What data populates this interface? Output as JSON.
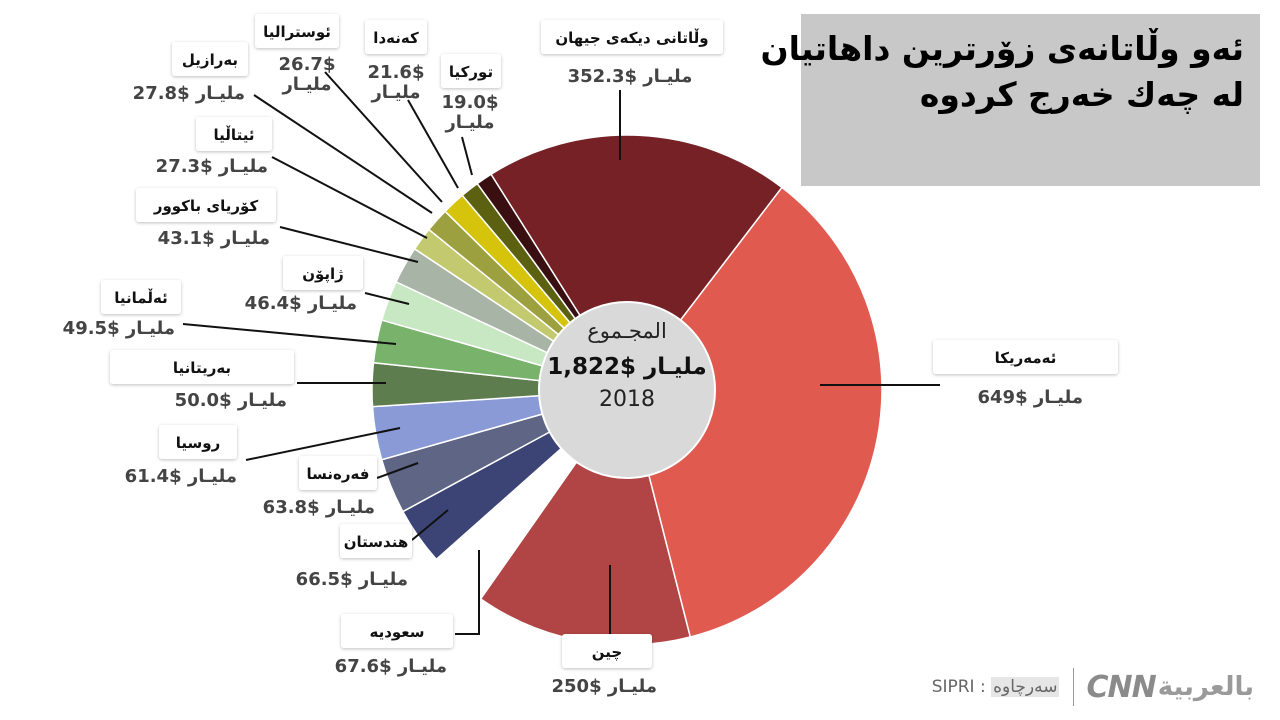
{
  "title_lines": [
    "ئەو وڵاتانەی زۆرترین داهاتیان",
    "لە چەك خەرج كردوە"
  ],
  "center": {
    "label": "المجـموع",
    "total": "1,822$ مليـار",
    "year": "2018"
  },
  "footer": {
    "source_label": "سەرچاوە",
    "source_value": "SIPRI :",
    "logo_cnn": "CNN",
    "logo_ar": "بالعربية"
  },
  "chart_data": {
    "type": "pie",
    "total": 1822,
    "year": 2018,
    "slices": [
      {
        "name": "ئەمەريكا",
        "value": 649,
        "label": "649$ مليـار",
        "color": "#e05a4f"
      },
      {
        "name": "چين",
        "value": 250,
        "label": "250$ مليـار",
        "color": "#b14545"
      },
      {
        "name": "سعوديه",
        "value": 67.6,
        "label": "67.6$ مليـار",
        "color": "#ffffff"
      },
      {
        "name": "هندستان",
        "value": 66.5,
        "label": "66.5$ مليـار",
        "color": "#3b4475"
      },
      {
        "name": "فەرەنسا",
        "value": 63.8,
        "label": "63.8$ مليـار",
        "color": "#5e6585"
      },
      {
        "name": "روسيا",
        "value": 61.4,
        "label": "61.4$ مليـار",
        "color": "#8a9ad6"
      },
      {
        "name": "بەريتانيا",
        "value": 50.0,
        "label": "50.0$ مليـار",
        "color": "#5e7d4f"
      },
      {
        "name": "ئەڵمانيا",
        "value": 49.5,
        "label": "49.5$ مليـار",
        "color": "#79b36b"
      },
      {
        "name": "ژاپۆن",
        "value": 46.4,
        "label": "46.4$ مليـار",
        "color": "#c8e7c3"
      },
      {
        "name": "كۆرياى باكوور",
        "value": 43.1,
        "label": "43.1$ مليـار",
        "color": "#a8b4a6"
      },
      {
        "name": "ئيتاڵيا",
        "value": 27.3,
        "label": "27.3$ مليـار",
        "color": "#c3c96f"
      },
      {
        "name": "بەرازيل",
        "value": 27.8,
        "label": "27.8$ مليـار",
        "color": "#9da03e"
      },
      {
        "name": "ئوستراليا",
        "value": 26.7,
        "label": "26.7$ مليـار",
        "color": "#d6c40c"
      },
      {
        "name": "كەنەدا",
        "value": 21.6,
        "label": "21.6$ مليـار",
        "color": "#5c6112"
      },
      {
        "name": "توركيا",
        "value": 19.0,
        "label": "19.0$ مليـار",
        "color": "#3a0f12"
      },
      {
        "name": "وڵاتانى ديكەى جيهان",
        "value": 352.3,
        "label": "352.3$ مليـار",
        "color": "#762126"
      }
    ]
  }
}
